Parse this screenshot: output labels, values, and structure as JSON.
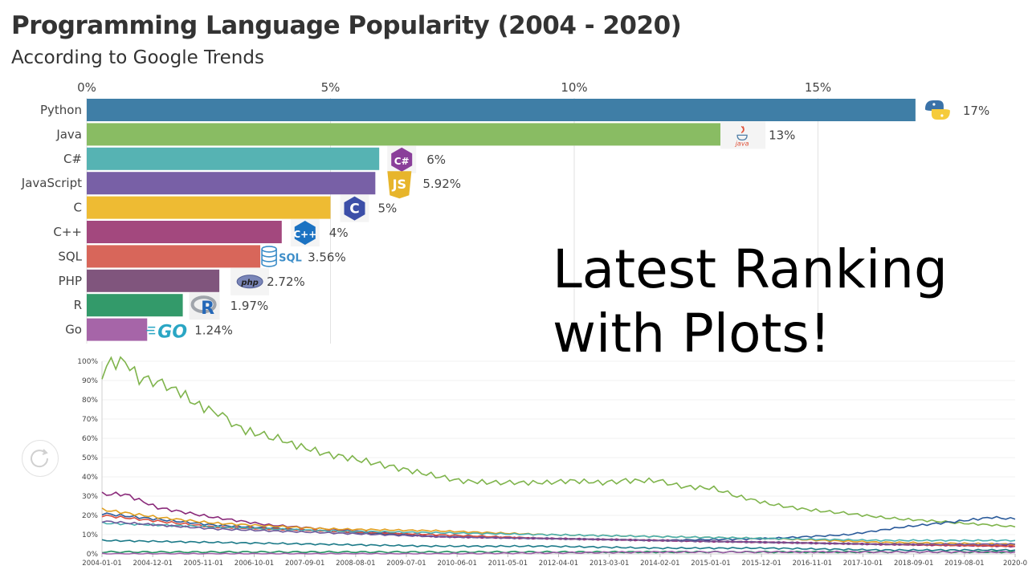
{
  "page": {
    "title": "Programming Language Popularity (2004 - 2020)",
    "subtitle": "According to Google Trends",
    "overlay_line1": "Latest Ranking",
    "overlay_line2": "with Plots!"
  },
  "chart_data": [
    {
      "type": "bar",
      "orientation": "horizontal",
      "title": "Programming Language Popularity (2004 - 2020)",
      "subtitle": "According to Google Trends",
      "x_ticks": [
        "0%",
        "5%",
        "10%",
        "15%"
      ],
      "xlim": [
        0,
        17
      ],
      "grid": true,
      "categories": [
        "Python",
        "Java",
        "C#",
        "JavaScript",
        "C",
        "C++",
        "SQL",
        "PHP",
        "R",
        "Go"
      ],
      "values": [
        17,
        13,
        6,
        5.92,
        5,
        4,
        3.56,
        2.72,
        1.97,
        1.24
      ],
      "value_labels": [
        "17%",
        "13%",
        "6%",
        "5.92%",
        "5%",
        "4%",
        "3.56%",
        "2.72%",
        "1.97%",
        "1.24%"
      ],
      "colors": [
        "#3f7ea6",
        "#89bc63",
        "#56b3b3",
        "#7860a6",
        "#eebb33",
        "#a3487e",
        "#d8665a",
        "#80557d",
        "#339a6a",
        "#a665a8"
      ],
      "icons": [
        "python-logo-icon",
        "java-logo-icon",
        "csharp-logo-icon",
        "javascript-logo-icon",
        "c-logo-icon",
        "cpp-logo-icon",
        "sql-logo-icon",
        "php-logo-icon",
        "r-logo-icon",
        "go-logo-icon"
      ],
      "icon_text": {
        "java": "java",
        "js": "JS",
        "c": "C",
        "csharp": "C#",
        "cpp": "C++",
        "sql": "SQL",
        "php": "php",
        "r": "R",
        "go": "GO"
      }
    },
    {
      "type": "line",
      "y_ticks": [
        "0%",
        "10%",
        "20%",
        "30%",
        "40%",
        "50%",
        "60%",
        "70%",
        "80%",
        "90%",
        "100%"
      ],
      "ylim": [
        0,
        100
      ],
      "xlim": [
        "2004-01-01",
        "2020-06-01"
      ],
      "x_ticks": [
        "2004-01-01",
        "2004-12-01",
        "2005-11-01",
        "2006-10-01",
        "2007-09-01",
        "2008-08-01",
        "2009-07-01",
        "2010-06-01",
        "2011-05-01",
        "2012-04-01",
        "2013-03-01",
        "2014-02-01",
        "2015-01-01",
        "2015-12-01",
        "2016-11-01",
        "2017-10-01",
        "2018-09-01",
        "2019-08-01",
        "2020-0"
      ],
      "series": [
        {
          "color": "#7fb44c",
          "points": [
            [
              "2004-01-01",
              94
            ],
            [
              "2004-03-01",
              99
            ],
            [
              "2004-06-01",
              100
            ],
            [
              "2004-09-01",
              91
            ],
            [
              "2004-12-01",
              90
            ],
            [
              "2005-03-01",
              87
            ],
            [
              "2005-06-01",
              84
            ],
            [
              "2005-09-01",
              78
            ],
            [
              "2005-11-01",
              76
            ],
            [
              "2006-02-01",
              73
            ],
            [
              "2006-05-01",
              68
            ],
            [
              "2006-08-01",
              64
            ],
            [
              "2006-11-01",
              62
            ],
            [
              "2007-03-01",
              60
            ],
            [
              "2007-06-01",
              57
            ],
            [
              "2007-09-01",
              55
            ],
            [
              "2008-01-01",
              52
            ],
            [
              "2008-06-01",
              50
            ],
            [
              "2008-12-01",
              47
            ],
            [
              "2009-06-01",
              44
            ],
            [
              "2009-12-01",
              41
            ],
            [
              "2010-06-01",
              38
            ],
            [
              "2011-01-01",
              37
            ],
            [
              "2011-06-01",
              37
            ],
            [
              "2012-01-01",
              37
            ],
            [
              "2012-06-01",
              38
            ],
            [
              "2013-01-01",
              37
            ],
            [
              "2013-06-01",
              38
            ],
            [
              "2014-01-01",
              38
            ],
            [
              "2014-06-01",
              35
            ],
            [
              "2015-01-01",
              34
            ],
            [
              "2015-06-01",
              30
            ],
            [
              "2016-01-01",
              26
            ],
            [
              "2016-06-01",
              24
            ],
            [
              "2017-01-01",
              22
            ],
            [
              "2017-06-01",
              21
            ],
            [
              "2018-01-01",
              19
            ],
            [
              "2018-06-01",
              18
            ],
            [
              "2019-01-01",
              17
            ],
            [
              "2019-06-01",
              16
            ],
            [
              "2020-01-01",
              15
            ],
            [
              "2020-06-01",
              14
            ]
          ]
        },
        {
          "color": "#8a2a7a",
          "points": [
            [
              "2004-01-01",
              31
            ],
            [
              "2004-06-01",
              31
            ],
            [
              "2005-01-01",
              24
            ],
            [
              "2006-01-01",
              19
            ],
            [
              "2007-01-01",
              15
            ],
            [
              "2008-01-01",
              13
            ],
            [
              "2009-01-01",
              11
            ],
            [
              "2010-01-01",
              9
            ],
            [
              "2012-01-01",
              8
            ],
            [
              "2014-01-01",
              7
            ],
            [
              "2016-01-01",
              6
            ],
            [
              "2018-01-01",
              5
            ],
            [
              "2020-06-01",
              4
            ]
          ]
        },
        {
          "color": "#2a5a9a",
          "points": [
            [
              "2004-01-01",
              21
            ],
            [
              "2005-01-01",
              18
            ],
            [
              "2006-01-01",
              15
            ],
            [
              "2008-01-01",
              12
            ],
            [
              "2010-01-01",
              9
            ],
            [
              "2012-01-01",
              8
            ],
            [
              "2014-01-01",
              7
            ],
            [
              "2016-01-01",
              8
            ],
            [
              "2017-06-01",
              10
            ],
            [
              "2018-06-01",
              14
            ],
            [
              "2019-06-01",
              17
            ],
            [
              "2020-01-01",
              19
            ],
            [
              "2020-06-01",
              18
            ]
          ]
        },
        {
          "color": "#e0a020",
          "points": [
            [
              "2004-01-01",
              23
            ],
            [
              "2005-01-01",
              19
            ],
            [
              "2006-01-01",
              16
            ],
            [
              "2008-01-01",
              13
            ],
            [
              "2010-01-01",
              12
            ],
            [
              "2012-01-01",
              10
            ],
            [
              "2014-01-01",
              9
            ],
            [
              "2016-01-01",
              8
            ],
            [
              "2018-01-01",
              6
            ],
            [
              "2020-06-01",
              5
            ]
          ]
        },
        {
          "color": "#d95040",
          "points": [
            [
              "2004-01-01",
              20
            ],
            [
              "2005-01-01",
              17
            ],
            [
              "2006-01-01",
              14
            ],
            [
              "2008-01-01",
              12
            ],
            [
              "2010-01-01",
              10
            ],
            [
              "2012-01-01",
              8
            ],
            [
              "2014-01-01",
              7
            ],
            [
              "2016-01-01",
              6
            ],
            [
              "2018-01-01",
              5
            ],
            [
              "2020-06-01",
              4
            ]
          ]
        },
        {
          "color": "#48b0b0",
          "points": [
            [
              "2004-01-01",
              16
            ],
            [
              "2005-01-01",
              15
            ],
            [
              "2006-01-01",
              14
            ],
            [
              "2008-01-01",
              12
            ],
            [
              "2010-01-01",
              11
            ],
            [
              "2012-01-01",
              10
            ],
            [
              "2014-01-01",
              9
            ],
            [
              "2016-01-01",
              8
            ],
            [
              "2018-01-01",
              7
            ],
            [
              "2020-06-01",
              7
            ]
          ]
        },
        {
          "color": "#70589a",
          "points": [
            [
              "2004-01-01",
              17
            ],
            [
              "2006-01-01",
              13
            ],
            [
              "2008-01-01",
              11
            ],
            [
              "2010-01-01",
              9
            ],
            [
              "2012-01-01",
              8
            ],
            [
              "2014-01-01",
              7
            ],
            [
              "2016-01-01",
              6
            ],
            [
              "2018-01-01",
              5
            ],
            [
              "2020-06-01",
              5
            ]
          ]
        },
        {
          "color": "#1c7a88",
          "points": [
            [
              "2004-01-01",
              7
            ],
            [
              "2006-01-01",
              6
            ],
            [
              "2008-01-01",
              5
            ],
            [
              "2010-01-01",
              4
            ],
            [
              "2012-01-01",
              4
            ],
            [
              "2014-01-01",
              3
            ],
            [
              "2016-01-01",
              3
            ],
            [
              "2018-01-01",
              2
            ],
            [
              "2020-06-01",
              2
            ]
          ]
        },
        {
          "color": "#209060",
          "points": [
            [
              "2004-01-01",
              1
            ],
            [
              "2008-01-01",
              1
            ],
            [
              "2012-01-01",
              1
            ],
            [
              "2016-01-01",
              1
            ],
            [
              "2020-06-01",
              1
            ]
          ]
        },
        {
          "color": "#a060a8",
          "points": [
            [
              "2004-01-01",
              0
            ],
            [
              "2010-01-01",
              0
            ],
            [
              "2014-01-01",
              1
            ],
            [
              "2020-06-01",
              1
            ]
          ]
        }
      ]
    }
  ]
}
